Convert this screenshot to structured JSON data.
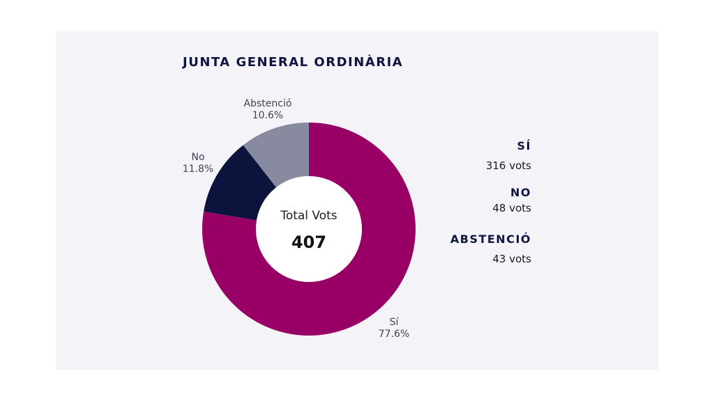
{
  "chart_data": {
    "type": "pie",
    "donut": true,
    "title": "JUNTA GENERAL ORDINÀRIA",
    "center": {
      "caption": "Total Vots",
      "total": "407"
    },
    "slices": [
      {
        "name": "Sí",
        "label": "Sí",
        "percent_label": "77.6%",
        "value": 316,
        "color": "#990066"
      },
      {
        "name": "No",
        "label": "No",
        "percent_label": "11.8%",
        "value": 48,
        "color": "#0c143d"
      },
      {
        "name": "Abstenció",
        "label": "Abstenció",
        "percent_label": "10.6%",
        "value": 43,
        "color": "#888aa0"
      }
    ],
    "legend": [
      {
        "name": "SÍ",
        "votes": "316 vots"
      },
      {
        "name": "NO",
        "votes": "48 vots"
      },
      {
        "name": "ABSTENCIÓ",
        "votes": "43 vots"
      }
    ],
    "legend_placement": "right"
  }
}
